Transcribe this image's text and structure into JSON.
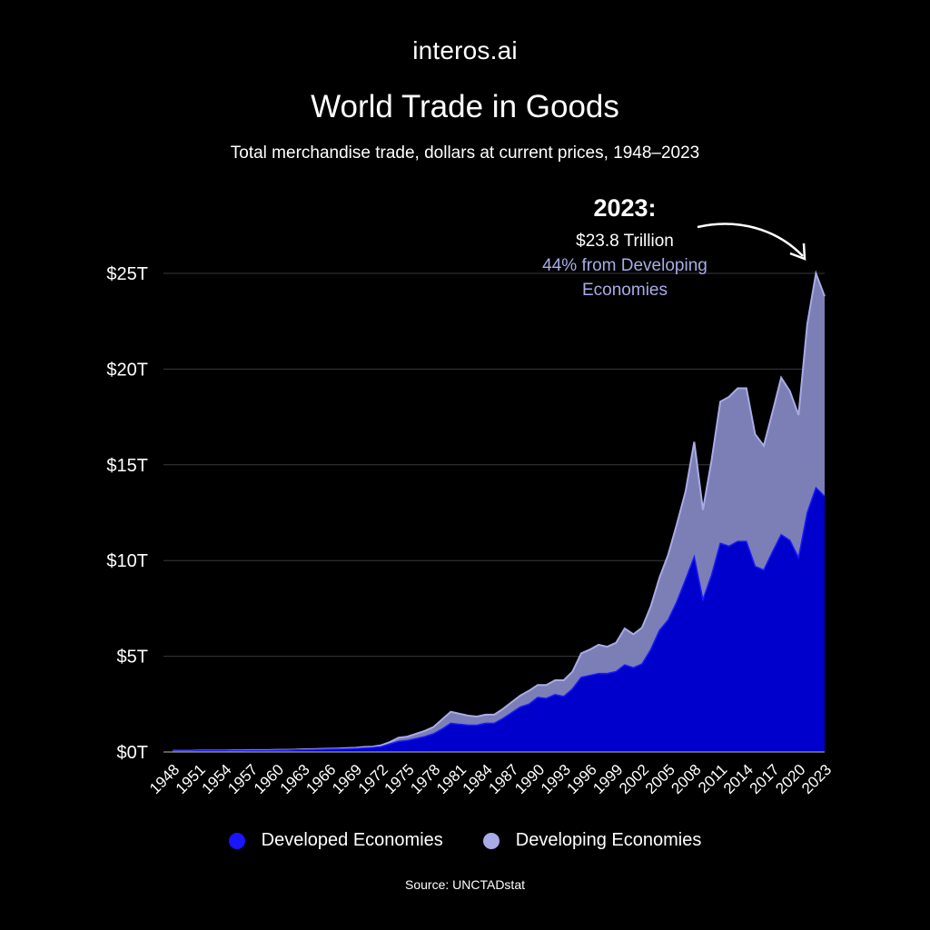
{
  "brand": "interos.ai",
  "source": "Source: UNCTADstat",
  "colors": {
    "background": "#000000",
    "developed": "#0000cc",
    "developed_dot": "#1a14ff",
    "developing": "#7b7fb5",
    "developing_dot": "#a9abe6",
    "annotation_accent": "#a9abe6",
    "grid": "#3a3a3a"
  },
  "annotation": {
    "year_label": "2023:",
    "value_label": "$23.8 Trillion",
    "share_label_line1": "44% from Developing",
    "share_label_line2": "Economies"
  },
  "chart_data": {
    "type": "area",
    "stacked": true,
    "title": "World Trade in Goods",
    "subtitle": "Total merchandise trade, dollars at current prices, 1948–2023",
    "xlabel": "",
    "ylabel": "",
    "ylim": [
      0,
      25
    ],
    "yticks": [
      0,
      5,
      10,
      15,
      20,
      25
    ],
    "ytick_labels": [
      "$0T",
      "$5T",
      "$10T",
      "$15T",
      "$20T",
      "$25T"
    ],
    "xtick_labels": [
      "1948",
      "1951",
      "1954",
      "1957",
      "1960",
      "1963",
      "1966",
      "1969",
      "1972",
      "1975",
      "1978",
      "1981",
      "1984",
      "1987",
      "1990",
      "1993",
      "1996",
      "1999",
      "2002",
      "2005",
      "2008",
      "2011",
      "2014",
      "2017",
      "2020",
      "2023"
    ],
    "grid": true,
    "legend_position": "bottom",
    "x": [
      1948,
      1949,
      1950,
      1951,
      1952,
      1953,
      1954,
      1955,
      1956,
      1957,
      1958,
      1959,
      1960,
      1961,
      1962,
      1963,
      1964,
      1965,
      1966,
      1967,
      1968,
      1969,
      1970,
      1971,
      1972,
      1973,
      1974,
      1975,
      1976,
      1977,
      1978,
      1979,
      1980,
      1981,
      1982,
      1983,
      1984,
      1985,
      1986,
      1987,
      1988,
      1989,
      1990,
      1991,
      1992,
      1993,
      1994,
      1995,
      1996,
      1997,
      1998,
      1999,
      2000,
      2001,
      2002,
      2003,
      2004,
      2005,
      2006,
      2007,
      2008,
      2009,
      2010,
      2011,
      2012,
      2013,
      2014,
      2015,
      2016,
      2017,
      2018,
      2019,
      2020,
      2021,
      2022,
      2023
    ],
    "series": [
      {
        "name": "Developed Economies",
        "values": [
          0.05,
          0.05,
          0.05,
          0.06,
          0.06,
          0.06,
          0.06,
          0.07,
          0.07,
          0.08,
          0.08,
          0.08,
          0.09,
          0.09,
          0.1,
          0.11,
          0.12,
          0.13,
          0.14,
          0.15,
          0.16,
          0.18,
          0.21,
          0.23,
          0.28,
          0.42,
          0.55,
          0.6,
          0.7,
          0.8,
          0.95,
          1.2,
          1.5,
          1.45,
          1.4,
          1.4,
          1.5,
          1.5,
          1.75,
          2.05,
          2.35,
          2.5,
          2.85,
          2.8,
          3.0,
          2.9,
          3.3,
          3.9,
          4.0,
          4.1,
          4.1,
          4.2,
          4.55,
          4.4,
          4.6,
          5.35,
          6.35,
          6.9,
          7.85,
          9.0,
          10.2,
          7.95,
          9.25,
          10.9,
          10.75,
          11.0,
          11.0,
          9.7,
          9.5,
          10.45,
          11.35,
          11.05,
          10.15,
          12.5,
          13.8,
          13.35
        ]
      },
      {
        "name": "Developing Economies",
        "values": [
          0.01,
          0.01,
          0.01,
          0.01,
          0.01,
          0.01,
          0.01,
          0.02,
          0.02,
          0.02,
          0.02,
          0.02,
          0.02,
          0.02,
          0.02,
          0.03,
          0.03,
          0.03,
          0.03,
          0.03,
          0.04,
          0.04,
          0.05,
          0.05,
          0.07,
          0.1,
          0.2,
          0.2,
          0.25,
          0.3,
          0.35,
          0.5,
          0.6,
          0.55,
          0.5,
          0.45,
          0.45,
          0.45,
          0.5,
          0.55,
          0.6,
          0.7,
          0.65,
          0.7,
          0.75,
          0.85,
          0.9,
          1.25,
          1.35,
          1.5,
          1.4,
          1.5,
          1.9,
          1.75,
          1.9,
          2.25,
          2.75,
          3.4,
          4.05,
          4.6,
          6.0,
          4.7,
          6.0,
          7.4,
          7.8,
          8.0,
          8.0,
          6.9,
          6.5,
          7.3,
          8.2,
          7.8,
          7.45,
          9.85,
          11.2,
          10.45
        ]
      }
    ]
  }
}
